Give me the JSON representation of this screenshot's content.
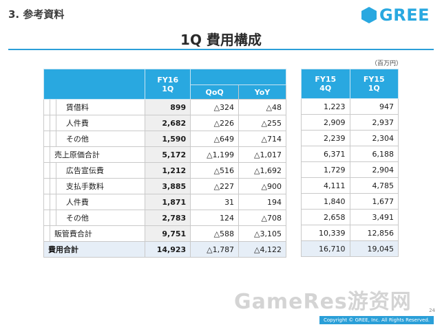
{
  "header": {
    "section": "3. 参考資料",
    "logo_text": "GREE",
    "title": "1Q 費用構成",
    "unit": "（百万円）"
  },
  "left_table": {
    "col_fy16": "FY16\n1Q",
    "col_qoq": "QoQ",
    "col_yoy": "YoY",
    "rows": [
      {
        "label": "賃借料",
        "fy16": "899",
        "qoq": "△324",
        "yoy": "△48"
      },
      {
        "label": "人件費",
        "fy16": "2,682",
        "qoq": "△226",
        "yoy": "△255"
      },
      {
        "label": "その他",
        "fy16": "1,590",
        "qoq": "△649",
        "yoy": "△714"
      },
      {
        "label": "売上原価合計",
        "fy16": "5,172",
        "qoq": "△1,199",
        "yoy": "△1,017"
      },
      {
        "label": "広告宣伝費",
        "fy16": "1,212",
        "qoq": "△516",
        "yoy": "△1,692"
      },
      {
        "label": "支払手数料",
        "fy16": "3,885",
        "qoq": "△227",
        "yoy": "△900"
      },
      {
        "label": "人件費",
        "fy16": "1,871",
        "qoq": "31",
        "yoy": "194"
      },
      {
        "label": "その他",
        "fy16": "2,783",
        "qoq": "124",
        "yoy": "△708"
      },
      {
        "label": "販管費合計",
        "fy16": "9,751",
        "qoq": "△588",
        "yoy": "△3,105"
      }
    ],
    "total": {
      "label": "費用合計",
      "fy16": "14,923",
      "qoq": "△1,787",
      "yoy": "△4,122"
    }
  },
  "right_table": {
    "col_fy15_4q": "FY15\n4Q",
    "col_fy15_1q": "FY15\n1Q",
    "rows": [
      {
        "q4": "1,223",
        "q1": "947"
      },
      {
        "q4": "2,909",
        "q1": "2,937"
      },
      {
        "q4": "2,239",
        "q1": "2,304"
      },
      {
        "q4": "6,371",
        "q1": "6,188"
      },
      {
        "q4": "1,729",
        "q1": "2,904"
      },
      {
        "q4": "4,111",
        "q1": "4,785"
      },
      {
        "q4": "1,840",
        "q1": "1,677"
      },
      {
        "q4": "2,658",
        "q1": "3,491"
      },
      {
        "q4": "10,339",
        "q1": "12,856"
      }
    ],
    "total": {
      "q4": "16,710",
      "q1": "19,045"
    }
  },
  "footer": {
    "page": "24",
    "copyright": "Copyright © GREE, Inc. All Rights Reserved.",
    "watermark": "GameRes游资网"
  }
}
